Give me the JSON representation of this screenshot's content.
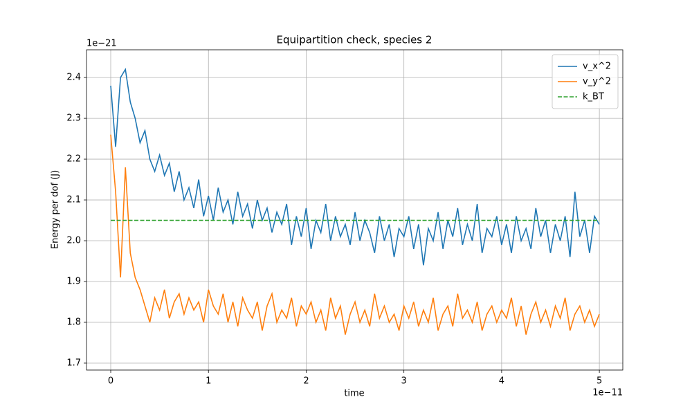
{
  "chart_data": {
    "type": "line",
    "title": "Equipartition check, species 2",
    "x_label": "time",
    "y_label": "Energy per dof (J)",
    "x_offset_label": "1e−11",
    "y_offset_label": "1e−21",
    "x": [
      0,
      0.05,
      0.1,
      0.15,
      0.2,
      0.25,
      0.3,
      0.35,
      0.4,
      0.45,
      0.5,
      0.55,
      0.6,
      0.65,
      0.7,
      0.75,
      0.8,
      0.85,
      0.9,
      0.95,
      1.0,
      1.05,
      1.1,
      1.15,
      1.2,
      1.25,
      1.3,
      1.35,
      1.4,
      1.45,
      1.5,
      1.55,
      1.6,
      1.65,
      1.7,
      1.75,
      1.8,
      1.85,
      1.9,
      1.95,
      2.0,
      2.05,
      2.1,
      2.15,
      2.2,
      2.25,
      2.3,
      2.35,
      2.4,
      2.45,
      2.5,
      2.55,
      2.6,
      2.65,
      2.7,
      2.75,
      2.8,
      2.85,
      2.9,
      2.95,
      3.0,
      3.05,
      3.1,
      3.15,
      3.2,
      3.25,
      3.3,
      3.35,
      3.4,
      3.45,
      3.5,
      3.55,
      3.6,
      3.65,
      3.7,
      3.75,
      3.8,
      3.85,
      3.9,
      3.95,
      4.0,
      4.05,
      4.1,
      4.15,
      4.2,
      4.25,
      4.3,
      4.35,
      4.4,
      4.45,
      4.5,
      4.55,
      4.6,
      4.65,
      4.7,
      4.75,
      4.8,
      4.85,
      4.9,
      4.95,
      5.0
    ],
    "series": [
      {
        "name": "v_x^2",
        "color": "#1f77b4",
        "dash": false,
        "values": [
          2.38,
          2.23,
          2.4,
          2.42,
          2.34,
          2.3,
          2.24,
          2.27,
          2.2,
          2.17,
          2.21,
          2.16,
          2.19,
          2.12,
          2.17,
          2.1,
          2.13,
          2.08,
          2.15,
          2.06,
          2.11,
          2.05,
          2.13,
          2.07,
          2.1,
          2.04,
          2.12,
          2.06,
          2.09,
          2.03,
          2.1,
          2.05,
          2.08,
          2.02,
          2.07,
          2.04,
          2.09,
          1.99,
          2.06,
          2.01,
          2.08,
          1.98,
          2.05,
          2.02,
          2.09,
          2.0,
          2.06,
          2.01,
          2.04,
          1.99,
          2.07,
          2.0,
          2.05,
          2.02,
          1.97,
          2.06,
          2.0,
          2.04,
          1.96,
          2.03,
          2.01,
          2.06,
          1.98,
          2.04,
          1.94,
          2.03,
          2.0,
          2.07,
          1.98,
          2.05,
          2.01,
          2.08,
          1.99,
          2.04,
          2.0,
          2.09,
          1.97,
          2.03,
          2.01,
          2.06,
          1.99,
          2.04,
          1.97,
          2.06,
          2.0,
          2.03,
          1.98,
          2.08,
          2.01,
          2.05,
          1.97,
          2.04,
          2.0,
          2.06,
          1.96,
          2.12,
          2.01,
          2.05,
          1.97,
          2.06,
          2.04
        ]
      },
      {
        "name": "v_y^2",
        "color": "#ff7f0e",
        "dash": false,
        "values": [
          2.26,
          2.12,
          1.91,
          2.18,
          1.97,
          1.91,
          1.88,
          1.84,
          1.8,
          1.86,
          1.83,
          1.88,
          1.81,
          1.85,
          1.87,
          1.82,
          1.86,
          1.83,
          1.85,
          1.8,
          1.88,
          1.84,
          1.82,
          1.87,
          1.8,
          1.85,
          1.79,
          1.86,
          1.83,
          1.81,
          1.85,
          1.78,
          1.84,
          1.87,
          1.8,
          1.83,
          1.81,
          1.86,
          1.79,
          1.84,
          1.82,
          1.85,
          1.8,
          1.83,
          1.78,
          1.86,
          1.81,
          1.84,
          1.77,
          1.82,
          1.85,
          1.8,
          1.83,
          1.79,
          1.87,
          1.81,
          1.84,
          1.8,
          1.82,
          1.78,
          1.84,
          1.81,
          1.85,
          1.79,
          1.83,
          1.8,
          1.86,
          1.78,
          1.82,
          1.84,
          1.79,
          1.87,
          1.81,
          1.83,
          1.8,
          1.85,
          1.78,
          1.82,
          1.84,
          1.8,
          1.83,
          1.81,
          1.86,
          1.79,
          1.84,
          1.77,
          1.82,
          1.85,
          1.8,
          1.83,
          1.79,
          1.84,
          1.81,
          1.86,
          1.78,
          1.82,
          1.84,
          1.8,
          1.83,
          1.79,
          1.82
        ]
      },
      {
        "name": "k_BT",
        "color": "#2ca02c",
        "dash": true,
        "x": [
          0,
          5
        ],
        "values": [
          2.05,
          2.05
        ]
      }
    ],
    "xlim": [
      -0.248,
      5.24
    ],
    "ylim": [
      1.683,
      2.468
    ],
    "xticks": [
      0,
      1,
      2,
      3,
      4,
      5
    ],
    "yticks": [
      1.7,
      1.8,
      1.9,
      {
        "value": 2,
        "label": "2.0"
      },
      2.1,
      2.2,
      2.3,
      2.4
    ],
    "grid": true,
    "legend": "upper right"
  }
}
